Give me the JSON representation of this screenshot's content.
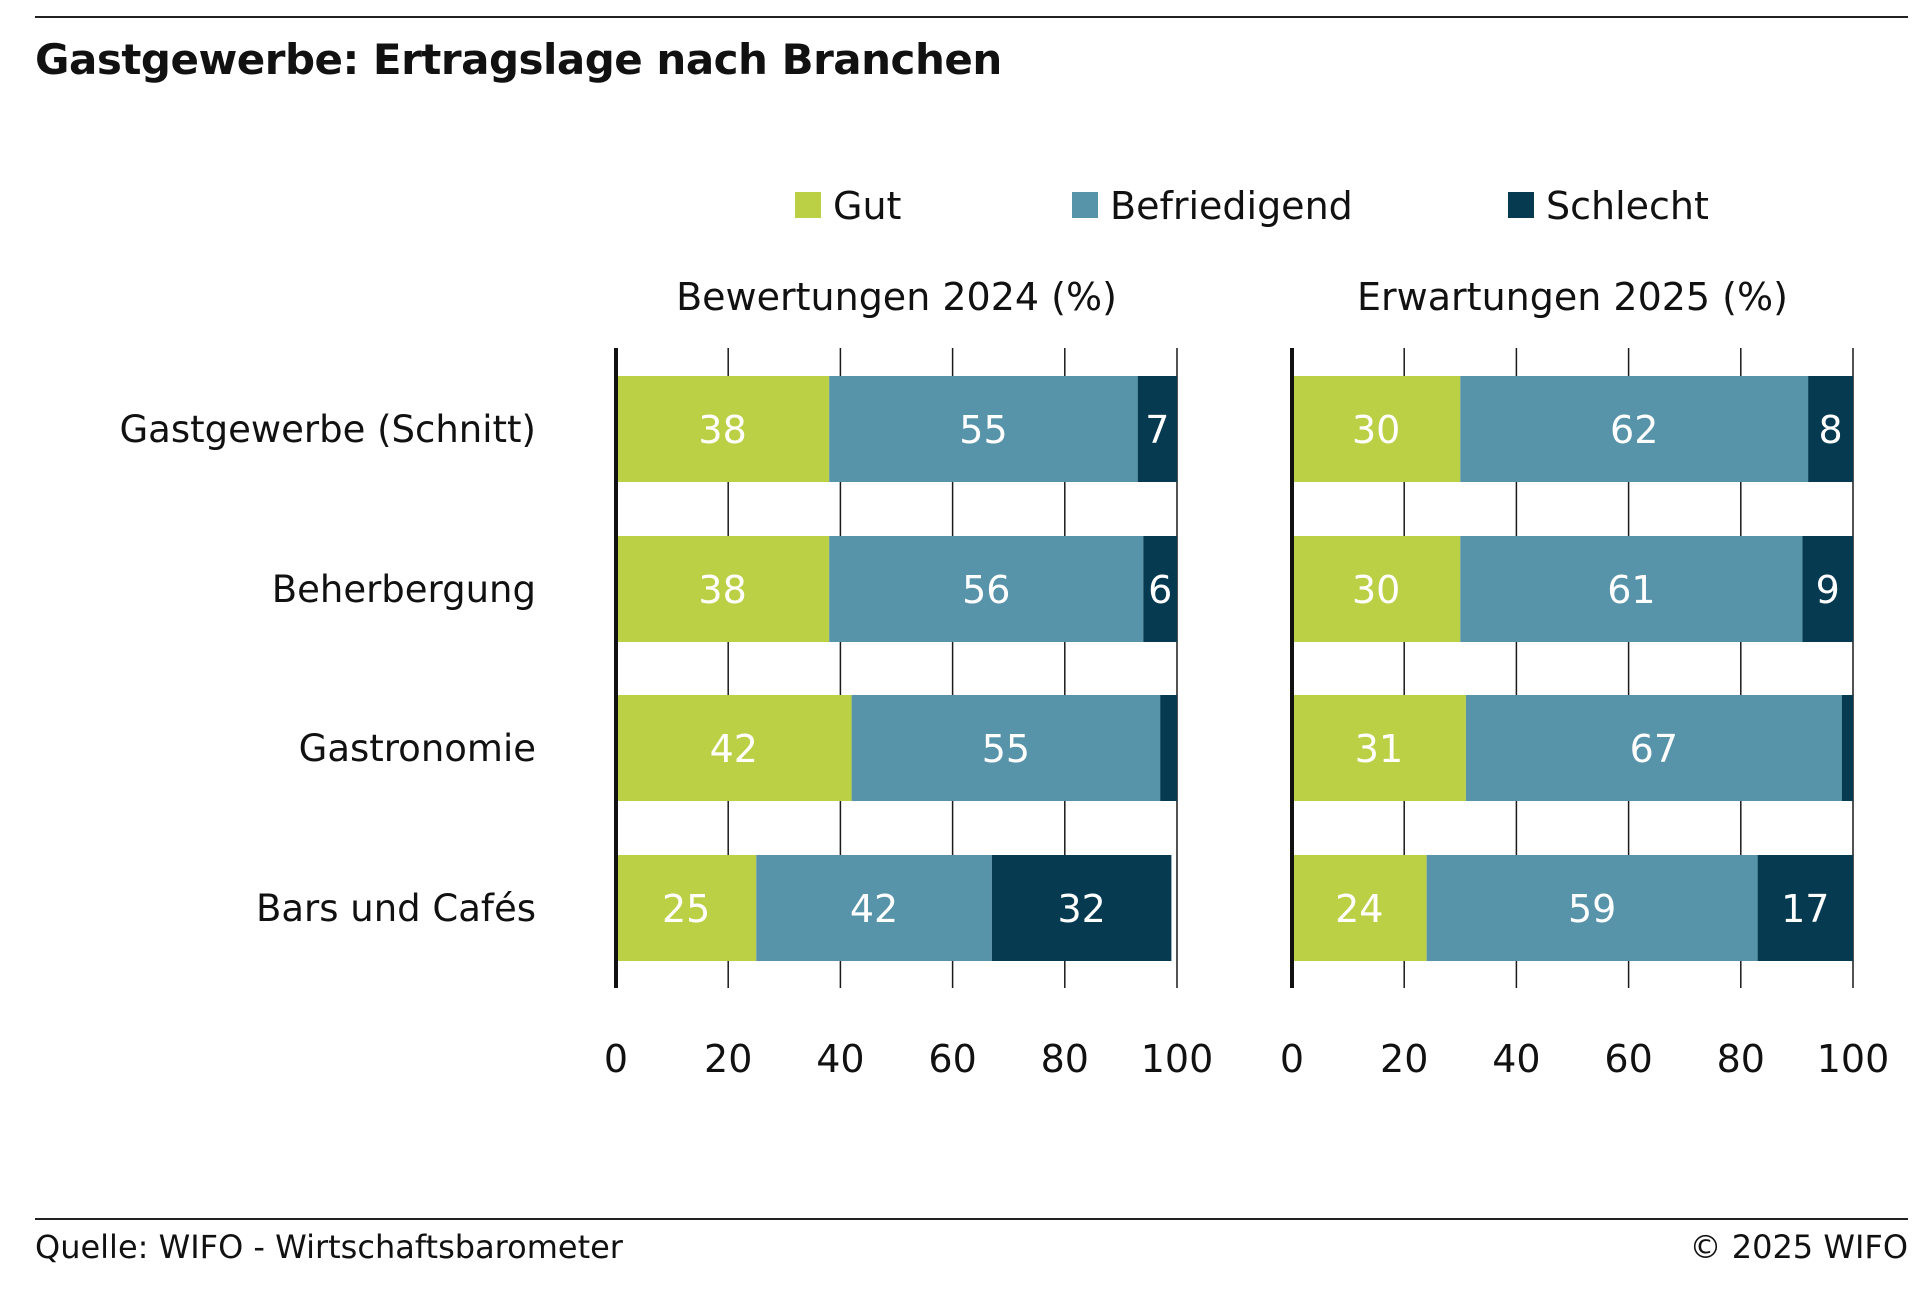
{
  "title": "Gastgewerbe: Ertragslage nach Branchen",
  "source": "Quelle: WIFO - Wirtschaftsbarometer",
  "copyright": "© 2025 WIFO",
  "colors": {
    "gut": "#bcd046",
    "befriedigend": "#5793a9",
    "schlecht": "#053a51",
    "gridline": "#1a1a1a",
    "axis": "#111111"
  },
  "chart_data": [
    {
      "type": "bar",
      "orientation": "horizontal",
      "stacked": true,
      "title": "Bewertungen 2024 (%)",
      "categories": [
        "Gastgewerbe (Schnitt)",
        "Beherbergung",
        "Gastronomie",
        "Bars und Cafés"
      ],
      "series": [
        {
          "name": "Gut",
          "values": [
            38,
            38,
            42,
            25
          ],
          "labels": [
            "38",
            "38",
            "42",
            "25"
          ]
        },
        {
          "name": "Befriedigend",
          "values": [
            55,
            56,
            55,
            42
          ],
          "labels": [
            "55",
            "56",
            "55",
            "42"
          ]
        },
        {
          "name": "Schlecht",
          "values": [
            7,
            6,
            3,
            32
          ],
          "labels": [
            "7",
            "6",
            "",
            "32"
          ]
        }
      ],
      "xlim": [
        0,
        100
      ],
      "xticks": [
        "0",
        "20",
        "40",
        "60",
        "80",
        "100"
      ],
      "grid": true,
      "legend": "top"
    },
    {
      "type": "bar",
      "orientation": "horizontal",
      "stacked": true,
      "title": "Erwartungen 2025 (%)",
      "categories": [
        "Gastgewerbe (Schnitt)",
        "Beherbergung",
        "Gastronomie",
        "Bars und Cafés"
      ],
      "series": [
        {
          "name": "Gut",
          "values": [
            30,
            30,
            31,
            24
          ],
          "labels": [
            "30",
            "30",
            "31",
            "24"
          ]
        },
        {
          "name": "Befriedigend",
          "values": [
            62,
            61,
            67,
            59
          ],
          "labels": [
            "62",
            "61",
            "67",
            "59"
          ]
        },
        {
          "name": "Schlecht",
          "values": [
            8,
            9,
            2,
            17
          ],
          "labels": [
            "8",
            "9",
            "",
            "17"
          ]
        }
      ],
      "xlim": [
        0,
        100
      ],
      "xticks": [
        "0",
        "20",
        "40",
        "60",
        "80",
        "100"
      ],
      "grid": true,
      "legend": "top"
    }
  ]
}
